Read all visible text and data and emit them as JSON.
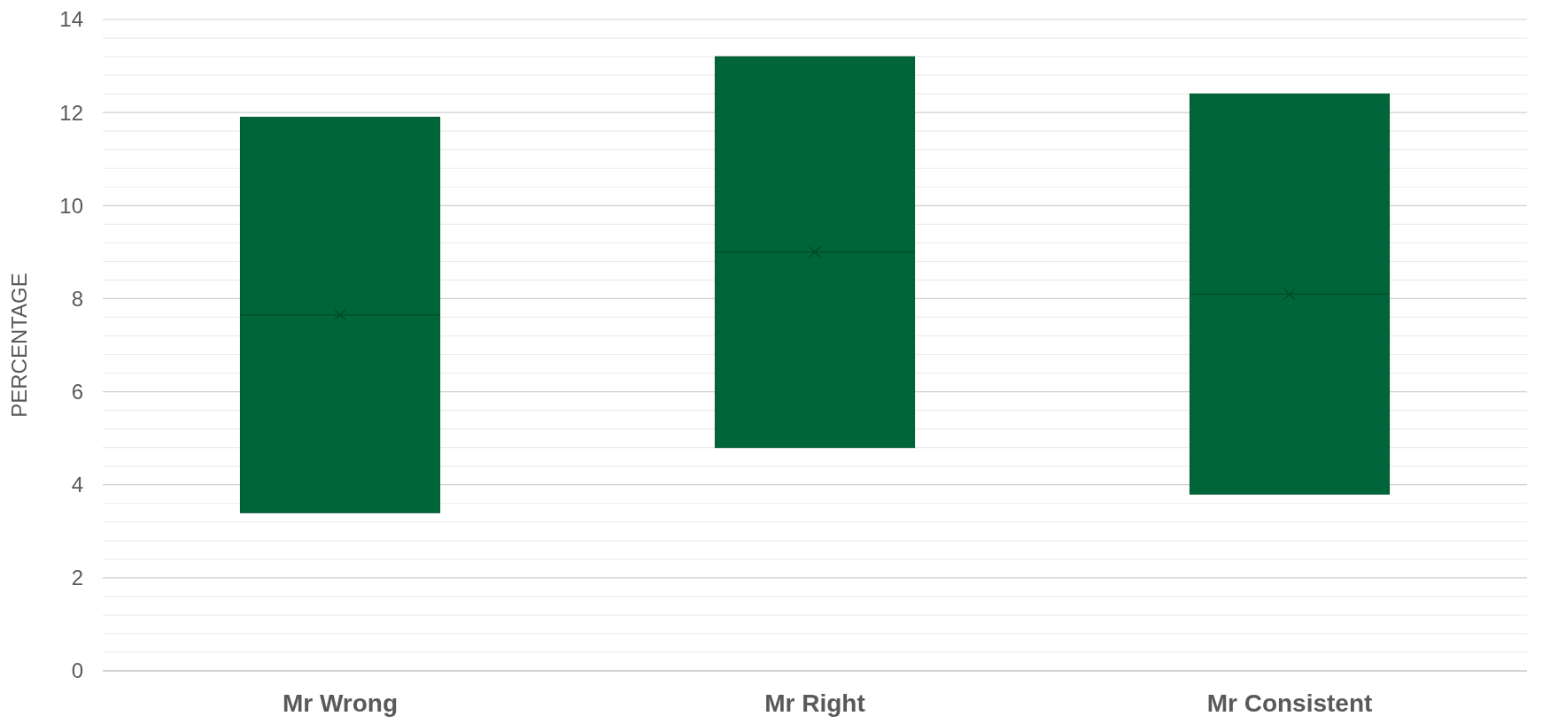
{
  "chart_data": {
    "type": "box",
    "ylabel": "PERCENTAGE",
    "categories": [
      "Mr Wrong",
      "Mr Right",
      "Mr Consistent"
    ],
    "series": [
      {
        "color": "#00663a",
        "boxes": [
          {
            "low": 3.4,
            "q1": 3.4,
            "median": 7.65,
            "q3": 11.9,
            "high": 11.9,
            "mean": 7.65
          },
          {
            "low": 4.8,
            "q1": 4.8,
            "median": 9.0,
            "q3": 13.2,
            "high": 13.2,
            "mean": 9.0
          },
          {
            "low": 3.8,
            "q1": 3.8,
            "median": 8.1,
            "q3": 12.4,
            "high": 12.4,
            "mean": 8.1
          }
        ]
      }
    ],
    "ylim": [
      0,
      14
    ],
    "yticks": [
      0,
      {
        "value": 0.4,
        "label": null
      },
      {
        "value": 0.8,
        "label": null
      },
      {
        "value": 1.2,
        "label": null
      },
      {
        "value": 1.6,
        "label": null
      },
      2,
      {
        "value": 2.4,
        "label": null
      },
      {
        "value": 2.8,
        "label": null
      },
      {
        "value": 3.2,
        "label": null
      },
      {
        "value": 3.6,
        "label": null
      },
      4,
      {
        "value": 4.4,
        "label": null
      },
      {
        "value": 4.8,
        "label": null
      },
      {
        "value": 5.2,
        "label": null
      },
      {
        "value": 5.6,
        "label": null
      },
      6,
      {
        "value": 6.4,
        "label": null
      },
      {
        "value": 6.8,
        "label": null
      },
      {
        "value": 7.2,
        "label": null
      },
      {
        "value": 7.6,
        "label": null
      },
      8,
      {
        "value": 8.4,
        "label": null
      },
      {
        "value": 8.8,
        "label": null
      },
      {
        "value": 9.2,
        "label": null
      },
      {
        "value": 9.6,
        "label": null
      },
      10,
      {
        "value": 10.4,
        "label": null
      },
      {
        "value": 10.8,
        "label": null
      },
      {
        "value": 11.2,
        "label": null
      },
      {
        "value": 11.6,
        "label": null
      },
      12,
      {
        "value": 12.4,
        "label": null
      },
      {
        "value": 12.8,
        "label": null
      },
      {
        "value": 13.2,
        "label": null
      },
      {
        "value": 13.6,
        "label": null
      },
      14
    ],
    "grid": "y"
  }
}
